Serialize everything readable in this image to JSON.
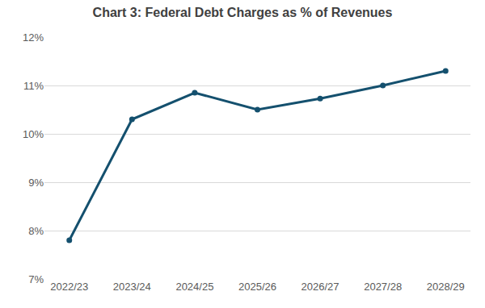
{
  "chart_data": {
    "type": "line",
    "title": "Chart 3: Federal Debt Charges as % of Revenues",
    "categories": [
      "2022/23",
      "2023/24",
      "2024/25",
      "2025/26",
      "2026/27",
      "2027/28",
      "2028/29"
    ],
    "values": [
      7.8,
      10.3,
      10.85,
      10.5,
      10.73,
      11.0,
      11.3
    ],
    "color": "#14506e",
    "marker": "circle",
    "ylim": [
      7,
      12
    ],
    "yticks": [
      {
        "value": 7,
        "label": "7%"
      },
      {
        "value": 8,
        "label": "8%"
      },
      {
        "value": 9,
        "label": "9%"
      },
      {
        "value": 10,
        "label": "10%"
      },
      {
        "value": 11,
        "label": "11%"
      },
      {
        "value": 12,
        "label": "12%"
      }
    ],
    "grid": true
  }
}
